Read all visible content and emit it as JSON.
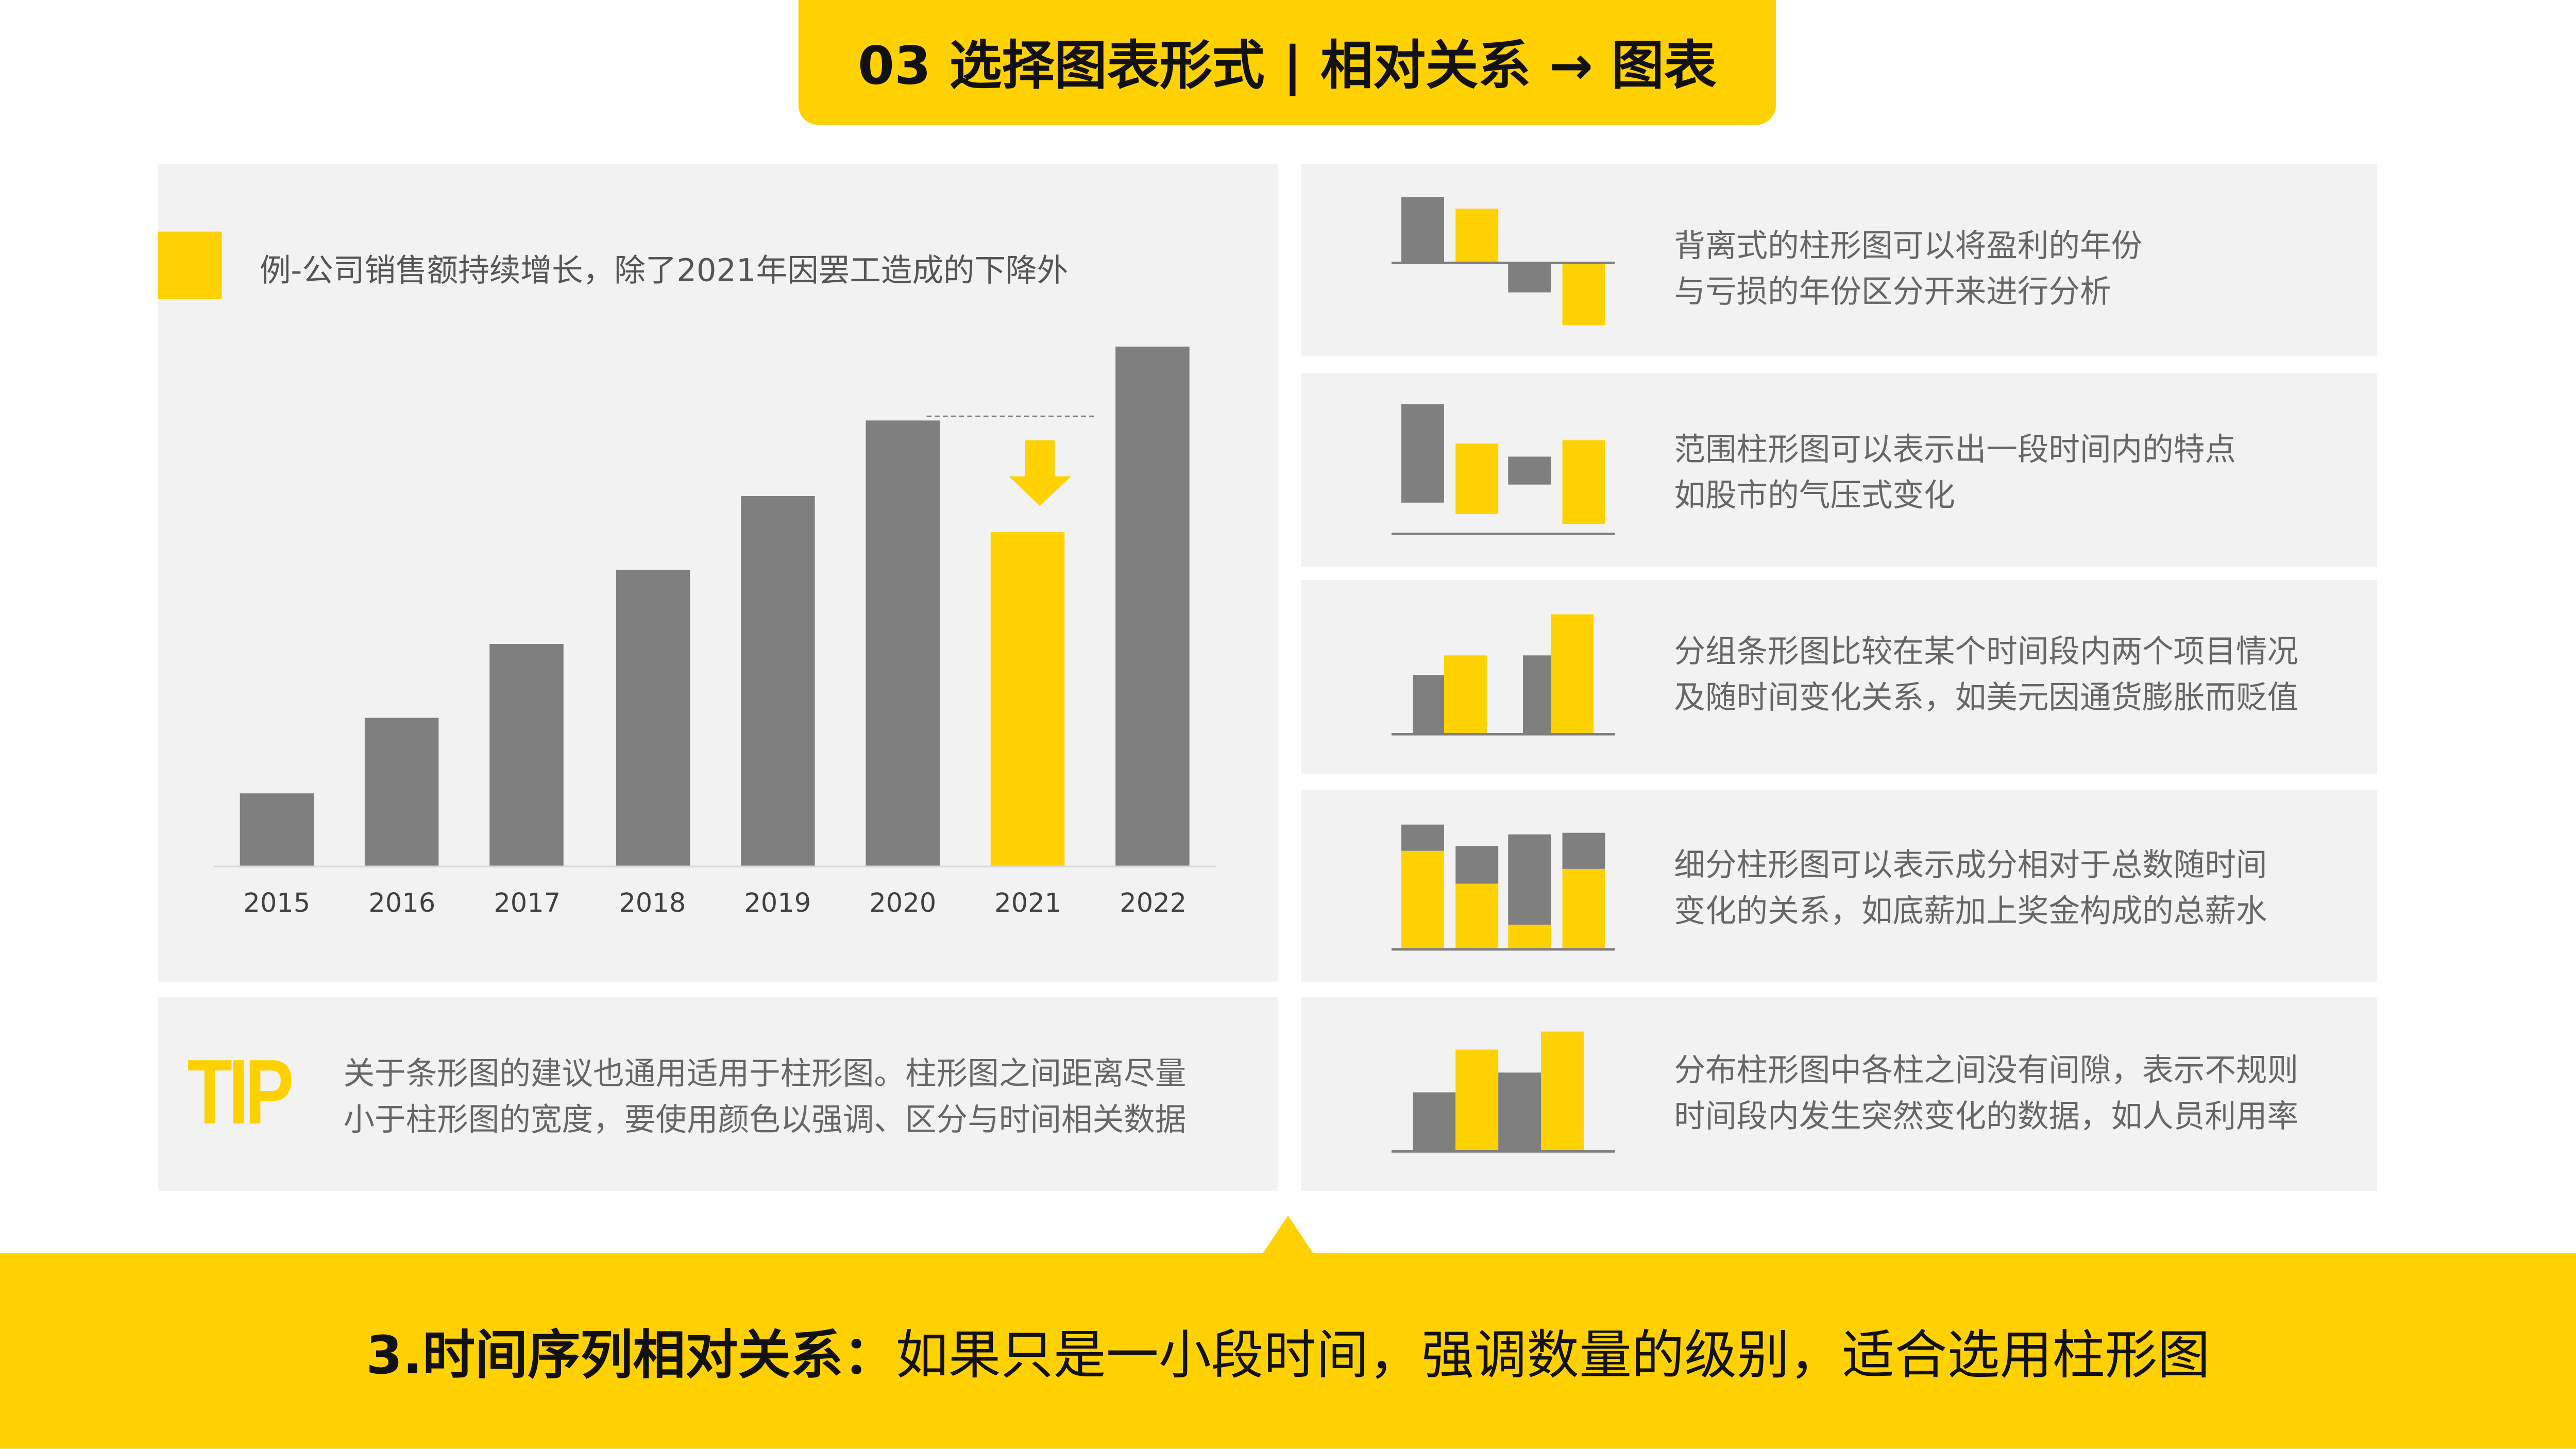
{
  "title": "03  选择图表形式 | 相对关系 → 图表",
  "example_caption": "例-公司销售额持续增长，除了2021年因罢工造成的下降外",
  "chart_data": {
    "type": "bar",
    "title": "例-公司销售额持续增长，除了2021年因罢工造成的下降外",
    "categories": [
      "2015",
      "2016",
      "2017",
      "2018",
      "2019",
      "2020",
      "2021",
      "2022"
    ],
    "values": [
      1,
      2,
      3,
      4,
      5,
      6,
      4.5,
      7
    ],
    "highlight": "2021",
    "ylim": [
      0,
      7.2
    ],
    "xlabel": "",
    "ylabel": "",
    "colors": {
      "normal": "#7F7F7F",
      "highlight": "#FFD100"
    }
  },
  "tip": {
    "label": "TIP",
    "text": "关于条形图的建议也通用适用于柱形图。柱形图之间距离尽量\n小于柱形图的宽度，要使用颜色以强调、区分与时间相关数据"
  },
  "types": [
    {
      "icon": "diverging-bar-icon",
      "text": "背离式的柱形图可以将盈利的年份\n与亏损的年份区分开来进行分析"
    },
    {
      "icon": "range-bar-icon",
      "text": "范围柱形图可以表示出一段时间内的特点\n如股市的气压式变化"
    },
    {
      "icon": "grouped-bar-icon",
      "text": "分组条形图比较在某个时间段内两个项目情况\n及随时间变化关系，如美元因通货膨胀而贬值"
    },
    {
      "icon": "stacked-bar-icon",
      "text": "细分柱形图可以表示成分相对于总数随时间\n变化的关系，如底薪加上奖金构成的总薪水"
    },
    {
      "icon": "histogram-icon",
      "text": "分布柱形图中各柱之间没有间隙，表示不规则\n时间段内发生突然变化的数据，如人员利用率"
    }
  ],
  "bottom": {
    "bold": "3.时间序列相对关系：",
    "rest": "如果只是一小段时间，强调数量的级别，适合选用柱形图"
  },
  "colors": {
    "accent": "#FFD100",
    "gray": "#7F7F7F",
    "panel": "#F2F2F2"
  }
}
